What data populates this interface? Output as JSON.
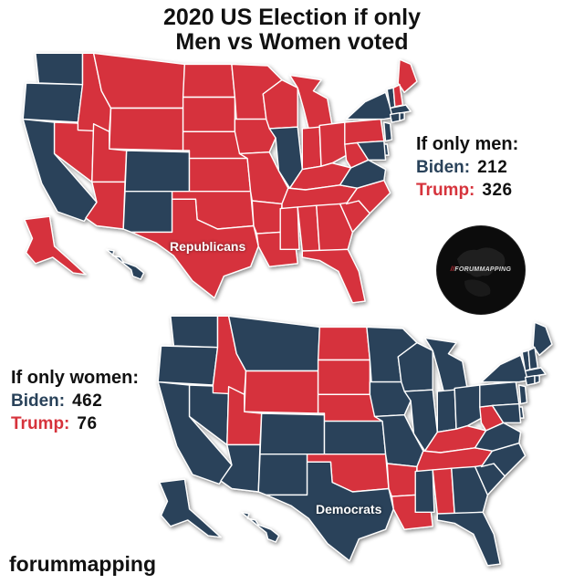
{
  "title_lines": [
    "2020 US Election if only",
    "Men vs Women voted"
  ],
  "colors": {
    "biden": "#29425a",
    "trump": "#d6333c",
    "border": "#ffffff"
  },
  "men": {
    "heading": "If only men:",
    "biden_label": "Biden:",
    "biden_ev": "212",
    "trump_label": "Trump:",
    "trump_ev": "326",
    "map_label": "Republicans",
    "states": {
      "WA": "biden",
      "OR": "biden",
      "CA": "biden",
      "NV": "trump",
      "ID": "trump",
      "MT": "trump",
      "WY": "trump",
      "UT": "trump",
      "AZ": "trump",
      "CO": "biden",
      "NM": "biden",
      "ND": "trump",
      "SD": "trump",
      "NE": "trump",
      "KS": "trump",
      "OK": "trump",
      "TX": "trump",
      "MN": "trump",
      "IA": "trump",
      "MO": "trump",
      "AR": "trump",
      "LA": "trump",
      "WI": "trump",
      "IL": "biden",
      "MI": "trump",
      "IN": "trump",
      "OH": "trump",
      "KY": "trump",
      "TN": "trump",
      "MS": "trump",
      "AL": "trump",
      "GA": "trump",
      "FL": "trump",
      "SC": "trump",
      "NC": "trump",
      "VA": "biden",
      "WV": "trump",
      "PA": "trump",
      "NY": "biden",
      "ME": "trump",
      "VT": "biden",
      "NH": "trump",
      "MA": "biden",
      "NJ": "biden",
      "MD": "biden",
      "DE": "biden",
      "CT": "biden",
      "RI": "biden",
      "AK": "trump",
      "HI": "biden"
    }
  },
  "women": {
    "heading": "If only women:",
    "biden_label": "Biden:",
    "biden_ev": "462",
    "trump_label": "Trump:",
    "trump_ev": "76",
    "map_label": "Democrats",
    "states": {
      "WA": "biden",
      "OR": "biden",
      "CA": "biden",
      "NV": "biden",
      "ID": "trump",
      "MT": "biden",
      "WY": "trump",
      "UT": "trump",
      "AZ": "biden",
      "CO": "biden",
      "NM": "biden",
      "ND": "trump",
      "SD": "trump",
      "NE": "trump",
      "KS": "biden",
      "OK": "trump",
      "TX": "biden",
      "MN": "biden",
      "IA": "biden",
      "MO": "biden",
      "AR": "trump",
      "LA": "trump",
      "WI": "biden",
      "IL": "biden",
      "MI": "biden",
      "IN": "biden",
      "OH": "biden",
      "KY": "trump",
      "TN": "trump",
      "MS": "biden",
      "AL": "trump",
      "GA": "biden",
      "FL": "biden",
      "SC": "biden",
      "NC": "biden",
      "VA": "biden",
      "WV": "trump",
      "PA": "biden",
      "NY": "biden",
      "ME": "biden",
      "VT": "biden",
      "NH": "biden",
      "MA": "biden",
      "NJ": "biden",
      "MD": "biden",
      "DE": "biden",
      "CT": "biden",
      "RI": "biden",
      "AK": "biden",
      "HI": "biden"
    }
  },
  "logo_text": "FORUMMAPPING",
  "footer": "forummapping"
}
